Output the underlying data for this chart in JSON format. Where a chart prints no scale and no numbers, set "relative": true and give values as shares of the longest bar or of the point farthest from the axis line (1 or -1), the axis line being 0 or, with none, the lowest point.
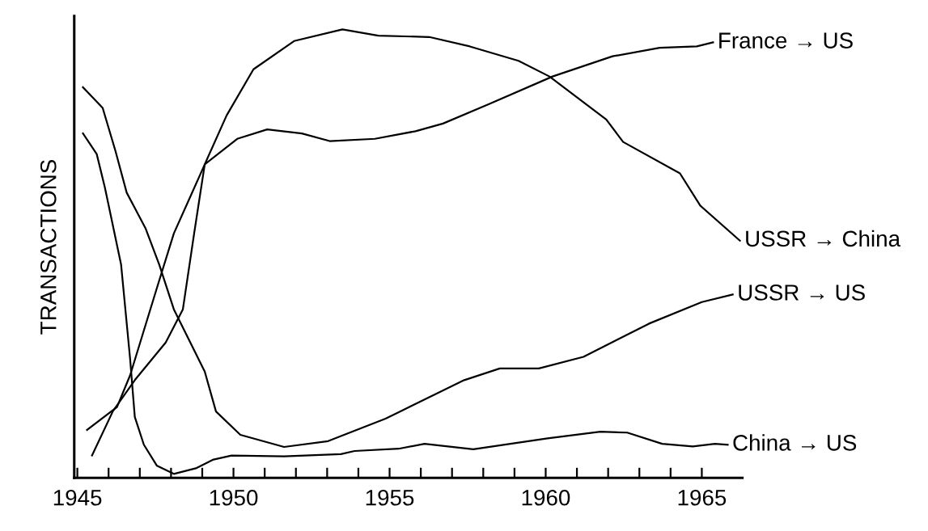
{
  "chart_data": {
    "type": "line",
    "relative": true,
    "ylabel": "TRANSACTIONS",
    "grid": false,
    "legend": false,
    "marker": "none",
    "line_style": "solid",
    "xlim": [
      1944.9,
      1966.3
    ],
    "xticks": [
      1945,
      {
        "value": 1946,
        "label": null
      },
      {
        "value": 1947,
        "label": null
      },
      {
        "value": 1948,
        "label": null
      },
      {
        "value": 1949,
        "label": null
      },
      1950,
      {
        "value": 1951,
        "label": null
      },
      {
        "value": 1952,
        "label": null
      },
      {
        "value": 1953,
        "label": null
      },
      {
        "value": 1954,
        "label": null
      },
      1955,
      {
        "value": 1956,
        "label": null
      },
      {
        "value": 1957,
        "label": null
      },
      {
        "value": 1958,
        "label": null
      },
      {
        "value": 1959,
        "label": null
      },
      1960,
      {
        "value": 1961,
        "label": null
      },
      {
        "value": 1962,
        "label": null
      },
      {
        "value": 1963,
        "label": null
      },
      {
        "value": 1964,
        "label": null
      },
      1965
    ],
    "series": [
      {
        "name": "France → US",
        "color": "#000000",
        "x": [
          1945.31,
          1946.27,
          1946.69,
          1947.55,
          1948.09,
          1949.08,
          1950.12,
          1951.08,
          1952.19,
          1953.08,
          1954.53,
          1955.83,
          1956.71,
          1958.17,
          1960.22,
          1962.14,
          1963.65,
          1964.84,
          1965.36
        ],
        "values": [
          0.107,
          0.158,
          0.229,
          0.424,
          0.545,
          0.699,
          0.756,
          0.777,
          0.768,
          0.751,
          0.756,
          0.773,
          0.79,
          0.833,
          0.895,
          0.94,
          0.959,
          0.962,
          0.971
        ]
      },
      {
        "name": "USSR → China",
        "color": "#000000",
        "x": [
          1945.47,
          1946.14,
          1946.84,
          1947.83,
          1948.38,
          1948.74,
          1949.08,
          1949.78,
          1950.64,
          1951.94,
          1953.49,
          1954.64,
          1956.27,
          1957.57,
          1959.13,
          1960.12,
          1961.94,
          1962.48,
          1964.3,
          1964.95,
          1966.22
        ],
        "values": [
          0.05,
          0.149,
          0.218,
          0.302,
          0.376,
          0.545,
          0.699,
          0.808,
          0.911,
          0.974,
          1.0,
          0.986,
          0.983,
          0.962,
          0.93,
          0.895,
          0.799,
          0.749,
          0.679,
          0.607,
          0.529
        ]
      },
      {
        "name": "USSR → US",
        "color": "#000000",
        "x": [
          1945.18,
          1945.81,
          1946.22,
          1946.58,
          1947.18,
          1947.62,
          1948.09,
          1949.08,
          1949.44,
          1950.22,
          1951.62,
          1953.03,
          1954.87,
          1957.39,
          1958.53,
          1959.78,
          1961.21,
          1963.31,
          1965.0,
          1965.99
        ],
        "values": [
          0.871,
          0.825,
          0.729,
          0.636,
          0.557,
          0.476,
          0.376,
          0.237,
          0.148,
          0.096,
          0.069,
          0.082,
          0.132,
          0.218,
          0.244,
          0.244,
          0.27,
          0.344,
          0.392,
          0.409
        ]
      },
      {
        "name": "China → US",
        "color": "#000000",
        "x": [
          1945.18,
          1945.62,
          1945.88,
          1946.4,
          1946.69,
          1946.84,
          1947.13,
          1947.55,
          1948.09,
          1948.82,
          1949.36,
          1949.94,
          1951.62,
          1953.44,
          1953.88,
          1955.29,
          1956.12,
          1957.68,
          1960.06,
          1961.75,
          1962.61,
          1963.73,
          1964.71,
          1965.42,
          1965.83
        ],
        "values": [
          0.768,
          0.722,
          0.648,
          0.476,
          0.265,
          0.136,
          0.074,
          0.027,
          0.009,
          0.022,
          0.041,
          0.05,
          0.048,
          0.053,
          0.06,
          0.065,
          0.076,
          0.064,
          0.088,
          0.103,
          0.101,
          0.076,
          0.07,
          0.076,
          0.074
        ]
      }
    ]
  }
}
